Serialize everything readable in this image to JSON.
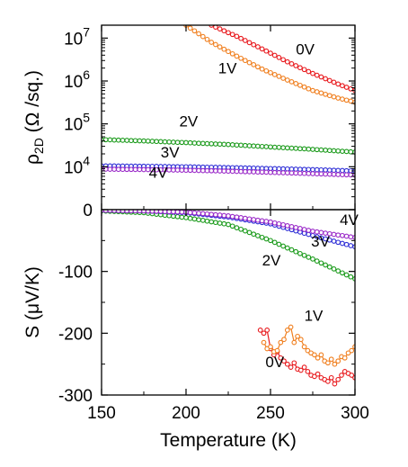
{
  "chart_data": [
    {
      "type": "scatter",
      "panel": "top",
      "ylabel_main": "ρ",
      "ylabel_sub": "2D",
      "ylabel_rest": " (Ω /sq.)",
      "yscale": "log",
      "ylim": [
        1000,
        20000000
      ],
      "xlim": [
        150,
        300
      ],
      "y_ticks": [
        {
          "value": 10000,
          "base": "10",
          "exp": "4"
        },
        {
          "value": 100000,
          "base": "10",
          "exp": "5"
        },
        {
          "value": 1000000,
          "base": "10",
          "exp": "6"
        },
        {
          "value": 10000000,
          "base": "10",
          "exp": "7"
        }
      ],
      "series": [
        {
          "name": "0V",
          "color": "#e8191d",
          "x": [
            215,
            230,
            245,
            260,
            275,
            290,
            300
          ],
          "y": [
            20000000,
            11000000,
            5600000,
            2800000,
            1500000,
            850000,
            600000
          ]
        },
        {
          "name": "1V",
          "color": "#f07f1f",
          "x": [
            200,
            215,
            230,
            245,
            260,
            275,
            290,
            300
          ],
          "y": [
            20000000,
            8000000,
            3800000,
            1900000,
            1050000,
            600000,
            400000,
            320000
          ]
        },
        {
          "name": "2V",
          "color": "#1a9a1a",
          "x": [
            150,
            175,
            200,
            225,
            250,
            275,
            300
          ],
          "y": [
            43000,
            40000,
            36500,
            33000,
            29000,
            25500,
            22000
          ]
        },
        {
          "name": "3V",
          "color": "#2d2dd6",
          "x": [
            150,
            175,
            200,
            225,
            250,
            275,
            300
          ],
          "y": [
            10500,
            10300,
            10000,
            9600,
            9100,
            8600,
            8000
          ]
        },
        {
          "name": "4V",
          "color": "#9a2ac8",
          "x": [
            150,
            175,
            200,
            225,
            250,
            275,
            300
          ],
          "y": [
            8800,
            8600,
            8300,
            7900,
            7400,
            6900,
            6400
          ]
        }
      ],
      "series_labels": [
        {
          "text": "0V",
          "x": 265,
          "y": 4200000
        },
        {
          "text": "1V",
          "x": 219,
          "y": 1500000
        },
        {
          "text": "2V",
          "x": 196,
          "y": 88000
        },
        {
          "text": "3V",
          "x": 185,
          "y": 16500
        },
        {
          "text": "4V",
          "x": 178,
          "y": 5600
        }
      ]
    },
    {
      "type": "scatter",
      "panel": "bottom",
      "ylabel": "S (μV/K)",
      "ylim": [
        -300,
        0
      ],
      "xlim": [
        150,
        300
      ],
      "y_ticks": [
        0,
        -100,
        -200,
        -300
      ],
      "x_ticks": [
        150,
        200,
        250,
        300
      ],
      "xlabel": "Temperature (K)",
      "series": [
        {
          "name": "0V",
          "color": "#e8191d",
          "x": [
            244,
            246,
            248,
            250,
            252,
            254,
            256,
            258,
            260,
            262,
            264,
            266,
            268,
            270,
            272,
            274,
            276,
            278,
            280,
            282,
            284,
            286,
            288,
            290,
            292,
            294,
            296,
            298,
            300
          ],
          "y": [
            -195,
            -200,
            -195,
            -225,
            -235,
            -230,
            -240,
            -245,
            -250,
            -255,
            -248,
            -258,
            -260,
            -255,
            -262,
            -268,
            -270,
            -266,
            -272,
            -275,
            -278,
            -272,
            -282,
            -275,
            -268,
            -262,
            -265,
            -268,
            -272
          ]
        },
        {
          "name": "1V",
          "color": "#f07f1f",
          "x": [
            246,
            248,
            250,
            252,
            254,
            256,
            258,
            260,
            262,
            264,
            266,
            268,
            270,
            272,
            274,
            276,
            278,
            280,
            282,
            284,
            286,
            288,
            290,
            292,
            294,
            296,
            298,
            300
          ],
          "y": [
            -215,
            -225,
            -222,
            -230,
            -228,
            -215,
            -210,
            -195,
            -190,
            -215,
            -205,
            -210,
            -222,
            -228,
            -232,
            -235,
            -240,
            -235,
            -245,
            -248,
            -242,
            -250,
            -245,
            -238,
            -240,
            -232,
            -228,
            -222
          ]
        },
        {
          "name": "2V",
          "color": "#1a9a1a",
          "x": [
            150,
            175,
            200,
            225,
            250,
            275,
            300
          ],
          "y": [
            -2,
            -5,
            -13,
            -24,
            -50,
            -80,
            -112
          ]
        },
        {
          "name": "3V",
          "color": "#2d2dd6",
          "x": [
            150,
            175,
            200,
            225,
            250,
            275,
            300
          ],
          "y": [
            -1,
            -2,
            -5,
            -12,
            -23,
            -42,
            -60
          ]
        },
        {
          "name": "4V",
          "color": "#9a2ac8",
          "x": [
            150,
            175,
            200,
            225,
            250,
            275,
            300
          ],
          "y": [
            -1,
            -2,
            -4,
            -10,
            -20,
            -35,
            -45
          ]
        }
      ],
      "series_labels": [
        {
          "text": "4V",
          "x": 291,
          "y": -25
        },
        {
          "text": "3V",
          "x": 274,
          "y": -60
        },
        {
          "text": "2V",
          "x": 245,
          "y": -90
        },
        {
          "text": "1V",
          "x": 270,
          "y": -180
        },
        {
          "text": "0V",
          "x": 247,
          "y": -255
        }
      ]
    }
  ]
}
